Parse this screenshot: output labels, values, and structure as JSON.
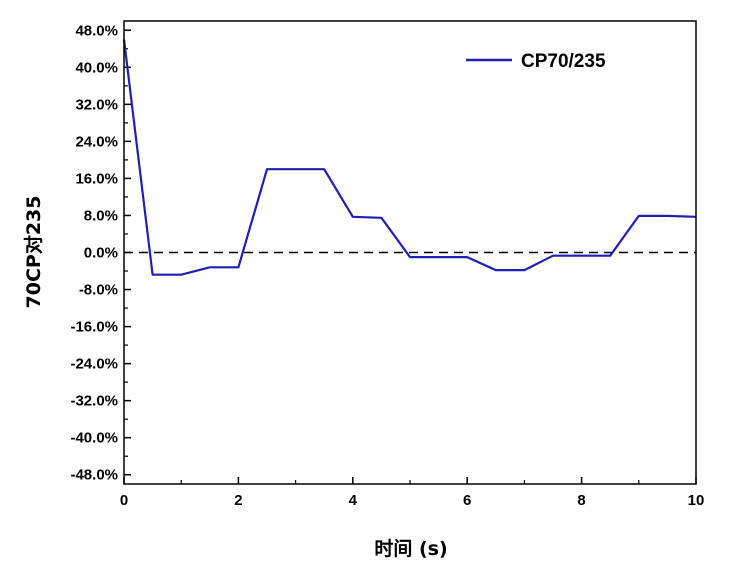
{
  "chart_data": {
    "type": "line",
    "xlabel": "时间 (s)",
    "ylabel": "70CP对235",
    "xlim": [
      0,
      10
    ],
    "ylim": [
      -50,
      50
    ],
    "x_ticks": [
      0,
      2,
      4,
      6,
      8,
      10
    ],
    "y_ticks": [
      48,
      40,
      32,
      24,
      16,
      8,
      0,
      -8,
      -16,
      -24,
      -32,
      -40,
      -48
    ],
    "x_tick_labels": [
      "0",
      "2",
      "4",
      "6",
      "8",
      "10"
    ],
    "y_tick_labels": [
      "48.0%",
      "40.0%",
      "32.0%",
      "24.0%",
      "16.0%",
      "8.0%",
      "0.0%",
      "-8.0%",
      "-16.0%",
      "-24.0%",
      "-32.0%",
      "-40.0%",
      "-48.0%"
    ],
    "reference_line": {
      "y": 0,
      "style": "dashed",
      "color": "#000000"
    },
    "legend_position": "top-right",
    "grid": false,
    "series": [
      {
        "name": "CP70/235",
        "color": "#1f1fb4",
        "x": [
          0,
          0.5,
          1,
          1.5,
          2,
          2.5,
          3,
          3.5,
          4,
          4.5,
          5,
          5.5,
          6,
          6.5,
          7,
          7.5,
          8,
          8.5,
          9,
          9.5,
          10
        ],
        "y": [
          46.0,
          -4.8,
          -4.8,
          -3.2,
          -3.2,
          18.0,
          18.0,
          18.0,
          7.7,
          7.5,
          -1.0,
          -1.0,
          -1.0,
          -3.8,
          -3.8,
          -0.7,
          -0.7,
          -0.7,
          7.9,
          7.9,
          7.7
        ]
      }
    ]
  }
}
